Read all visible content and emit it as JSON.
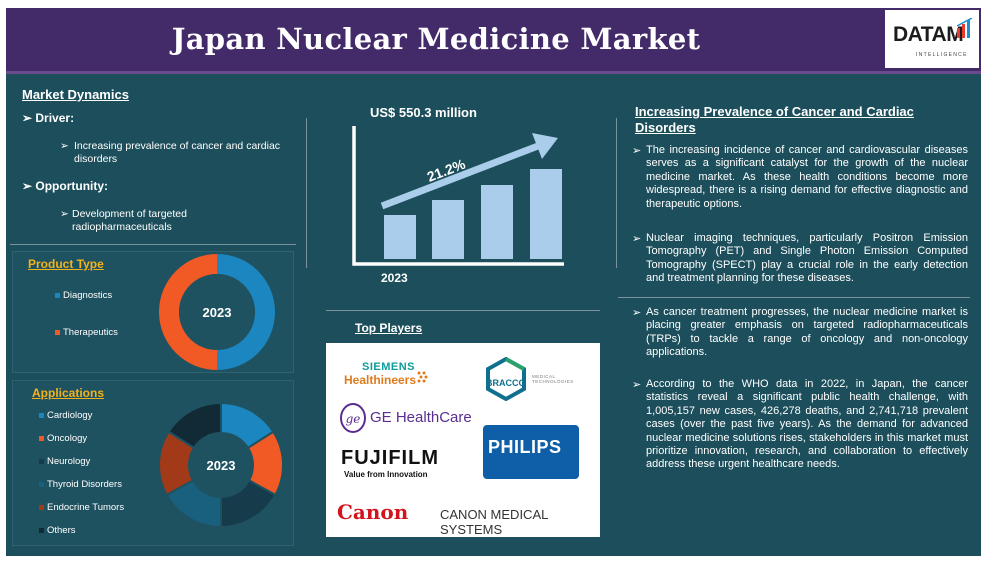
{
  "title": "Japan Nuclear Medicine Market",
  "logo": {
    "text": "DATAM",
    "subtext": "INTELLIGENCE"
  },
  "market_dynamics": {
    "heading": "Market Dynamics",
    "driver_label": "Driver:",
    "driver_text": "Increasing prevalence of cancer and cardiac disorders",
    "opportunity_label": "Opportunity:",
    "opportunity_text": "Development of targeted radiopharmaceuticals"
  },
  "product_type": {
    "heading": "Product Type",
    "year": "2023",
    "segments": [
      {
        "label": "Diagnostics",
        "color": "#1b86bf",
        "share": 0.5
      },
      {
        "label": "Therapeutics",
        "color": "#f15a24",
        "share": 0.5
      }
    ]
  },
  "applications": {
    "heading": "Applications",
    "year": "2023",
    "segments": [
      {
        "label": "Cardiology",
        "color": "#1b86bf",
        "share": 0.16
      },
      {
        "label": "Oncology",
        "color": "#f15a24",
        "share": 0.17
      },
      {
        "label": "Neurology",
        "color": "#163b4a",
        "share": 0.17
      },
      {
        "label": "Thyroid Disorders",
        "color": "#195f7e",
        "share": 0.17
      },
      {
        "label": "Endocrine Tumors",
        "color": "#a23a1a",
        "share": 0.17
      },
      {
        "label": "Others",
        "color": "#122a35",
        "share": 0.16
      }
    ]
  },
  "market_size": {
    "value_label": "US$ 550.3 million",
    "cagr": "21.2%",
    "year": "2023",
    "bar_heights": [
      0.24,
      0.34,
      0.44,
      0.54
    ]
  },
  "top_players": {
    "heading": "Top Players",
    "logos": [
      "SIEMENS",
      "Healthineers",
      "BRACCO",
      "MEDICAL TECHNOLOGIES",
      "GE HealthCare",
      "FUJIFILM",
      "Value from Innovation",
      "PHILIPS",
      "Canon",
      "CANON MEDICAL SYSTEMS"
    ]
  },
  "right_panel": {
    "heading": "Increasing Prevalence of Cancer and Cardiac Disorders",
    "bullets": [
      "The increasing incidence of cancer and cardiovascular diseases serves as a significant catalyst for the growth of the nuclear medicine market. As these health conditions become more widespread, there is a rising demand for effective diagnostic and therapeutic options.",
      " Nuclear imaging techniques, particularly Positron Emission Tomography (PET) and Single Photon Emission Computed Tomography (SPECT) play a crucial role in the early detection and treatment planning for these diseases.",
      "As cancer treatment progresses, the nuclear medicine market is placing greater emphasis on targeted radiopharmaceuticals (TRPs) to tackle a range of oncology and non-oncology applications.",
      "According to the WHO data in 2022, in Japan, the cancer statistics reveal a significant public health challenge, with 1,005,157 new cases, 426,278 deaths, and 2,741,718 prevalent cases (over the past five years). As the demand for advanced nuclear medicine solutions rises, stakeholders in this market must prioritize innovation, research, and collaboration to effectively address these urgent healthcare needs."
    ]
  }
}
